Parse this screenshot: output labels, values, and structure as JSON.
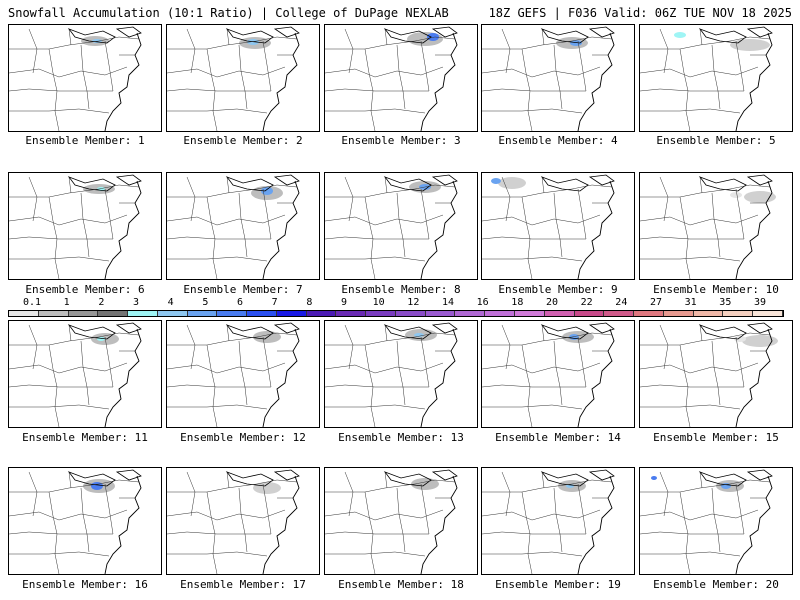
{
  "header": {
    "title_left": "Snowfall Accumulation (10:1 Ratio) | College of DuPage NEXLAB",
    "title_right": "18Z GEFS | F036 Valid: 06Z TUE NOV 18 2025"
  },
  "members": [
    {
      "label": "Ensemble Member: 1"
    },
    {
      "label": "Ensemble Member: 2"
    },
    {
      "label": "Ensemble Member: 3"
    },
    {
      "label": "Ensemble Member: 4"
    },
    {
      "label": "Ensemble Member: 5"
    },
    {
      "label": "Ensemble Member: 6"
    },
    {
      "label": "Ensemble Member: 7"
    },
    {
      "label": "Ensemble Member: 8"
    },
    {
      "label": "Ensemble Member: 9"
    },
    {
      "label": "Ensemble Member: 10"
    },
    {
      "label": "Ensemble Member: 11"
    },
    {
      "label": "Ensemble Member: 12"
    },
    {
      "label": "Ensemble Member: 13"
    },
    {
      "label": "Ensemble Member: 14"
    },
    {
      "label": "Ensemble Member: 15"
    },
    {
      "label": "Ensemble Member: 16"
    },
    {
      "label": "Ensemble Member: 17"
    },
    {
      "label": "Ensemble Member: 18"
    },
    {
      "label": "Ensemble Member: 19"
    },
    {
      "label": "Ensemble Member: 20"
    }
  ],
  "legend": {
    "ticks": [
      "0.1",
      "1",
      "2",
      "3",
      "4",
      "5",
      "6",
      "7",
      "8",
      "9",
      "10",
      "12",
      "14",
      "16",
      "18",
      "20",
      "22",
      "24",
      "27",
      "31",
      "35",
      "39"
    ],
    "colors": [
      "#e6e6e6",
      "#bdbdbd",
      "#969696",
      "#737373",
      "#9ff5f5",
      "#8ec7f0",
      "#6aa3f0",
      "#4a7cf0",
      "#2b50f0",
      "#1a1ae6",
      "#4b1ab4",
      "#6a2ab4",
      "#7a3cc0",
      "#8a4cc8",
      "#9a5ad0",
      "#b068d4",
      "#c070d8",
      "#d07ad8",
      "#d060b0",
      "#c84a8a",
      "#d05a8a",
      "#e07880",
      "#e89a90",
      "#f0b8a8",
      "#f5d0c0",
      "#f8e4d8"
    ]
  }
}
